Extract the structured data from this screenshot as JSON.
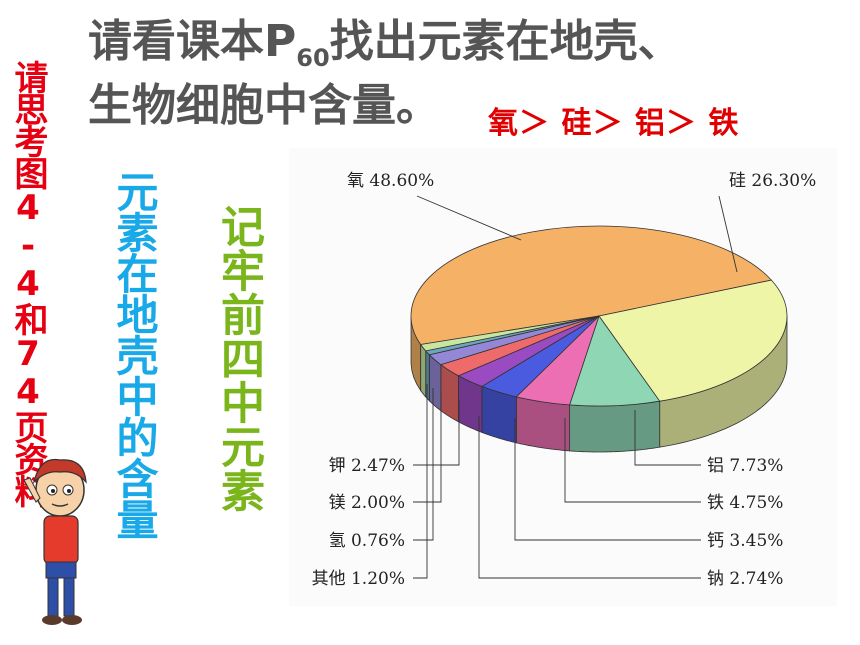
{
  "title": {
    "line1_prefix": "请看课本P",
    "line1_sub": "60",
    "line1_suffix": "找出元素在地壳、",
    "line2": "生物细胞中含量。"
  },
  "order_text": "氧＞ 硅＞ 铝＞ 铁",
  "side_labels": {
    "red": "请思考图4-4和74页资料",
    "blue": "元素在地壳中的含量",
    "green": "记牢前四中元素"
  },
  "colors": {
    "red_text": "#e60012",
    "blue_text": "#19a9e8",
    "green_text": "#7bb51c",
    "order_text": "#e00000"
  },
  "chart_data": {
    "type": "pie",
    "style": "3d-exploded",
    "slices": [
      {
        "label": "氧",
        "value": 48.6,
        "text": "48.60%",
        "color": "#f5b266"
      },
      {
        "label": "硅",
        "value": 26.3,
        "text": "26.30%",
        "color": "#eef5a6"
      },
      {
        "label": "铝",
        "value": 7.73,
        "text": "7.73%",
        "color": "#8fd6b4"
      },
      {
        "label": "铁",
        "value": 4.75,
        "text": "4.75%",
        "color": "#ec6fb3"
      },
      {
        "label": "钙",
        "value": 3.45,
        "text": "3.45%",
        "color": "#4b5be0"
      },
      {
        "label": "钠",
        "value": 2.74,
        "text": "2.74%",
        "color": "#9b4bc2"
      },
      {
        "label": "钾",
        "value": 2.47,
        "text": "2.47%",
        "color": "#ef6b6b"
      },
      {
        "label": "镁",
        "value": 2.0,
        "text": "2.00%",
        "color": "#9488d6"
      },
      {
        "label": "氢",
        "value": 0.76,
        "text": "0.76%",
        "color": "#6ba6bd"
      },
      {
        "label": "其他",
        "value": 1.2,
        "text": "1.20%",
        "color": "#c8e6a0"
      }
    ]
  }
}
